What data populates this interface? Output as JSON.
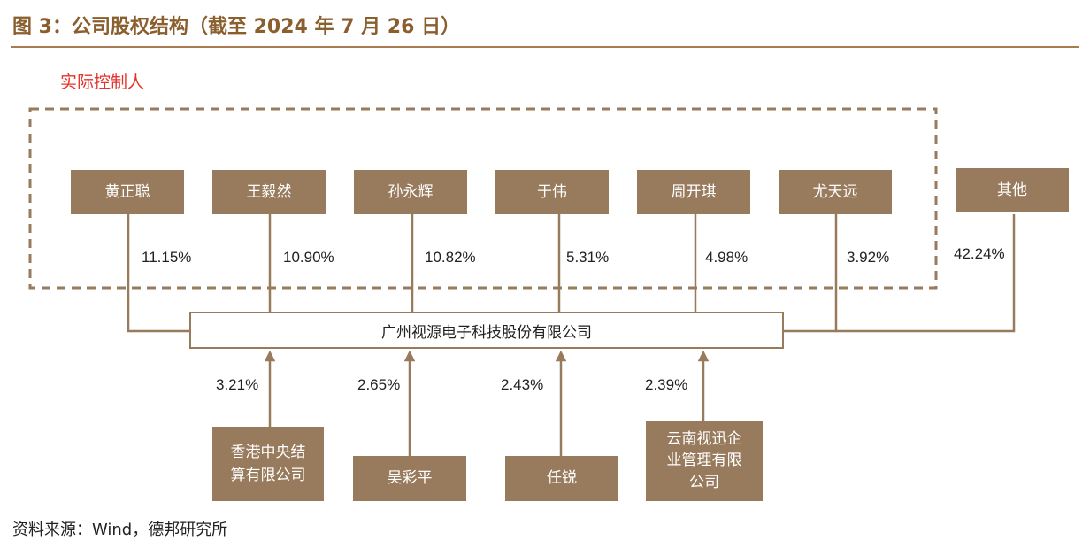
{
  "header": {
    "title": "图 3：公司股权结构（截至 2024 年 7 月 26 日）"
  },
  "controller_group": {
    "label": "实际控制人"
  },
  "upper_holders": [
    {
      "name": "黄正聪",
      "pct": "11.15%"
    },
    {
      "name": "王毅然",
      "pct": "10.90%"
    },
    {
      "name": "孙永辉",
      "pct": "10.82%"
    },
    {
      "name": "于伟",
      "pct": "5.31%"
    },
    {
      "name": "周开琪",
      "pct": "4.98%"
    },
    {
      "name": "尤天远",
      "pct": "3.92%"
    },
    {
      "name": "其他",
      "pct": "42.24%"
    }
  ],
  "company": {
    "name": "广州视源电子科技股份有限公司"
  },
  "lower_holders": [
    {
      "name_line1": "香港中央结",
      "name_line2": "算有限公司",
      "pct": "3.21%"
    },
    {
      "name_line1": "吴彩平",
      "name_line2": "",
      "pct": "2.65%"
    },
    {
      "name_line1": "任锐",
      "name_line2": "",
      "pct": "2.43%"
    },
    {
      "name_line1": "云南视迅企",
      "name_line2": "业管理有限",
      "name_line3": "公司",
      "pct": "2.39%"
    }
  ],
  "footer": {
    "source": "资料来源：Wind，德邦研究所"
  },
  "colors": {
    "box": "#987A5C",
    "line": "#987A5C",
    "title": "#8B5E2E",
    "controller_label": "#E4342B"
  }
}
